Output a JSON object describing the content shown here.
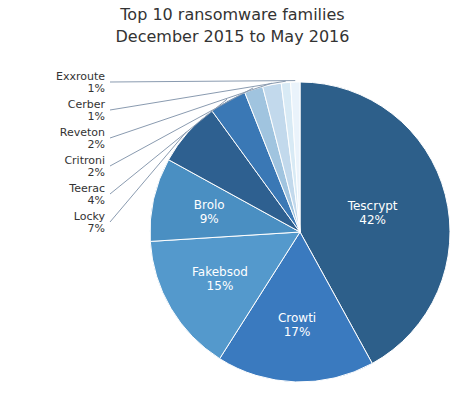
{
  "chart_data": {
    "type": "pie",
    "title": "Top 10 ransomware families",
    "subtitle": "December 2015 to May 2016",
    "categories": [
      "Tescrypt",
      "Crowti",
      "Fakebsod",
      "Brolo",
      "Locky",
      "Teerac",
      "Critroni",
      "Reveton",
      "Cerber",
      "Exxroute"
    ],
    "values": [
      42,
      17,
      15,
      9,
      7,
      4,
      2,
      2,
      1,
      1
    ],
    "value_labels": [
      "42%",
      "17%",
      "15%",
      "9%",
      "7%",
      "4%",
      "2%",
      "2%",
      "1%",
      "1%"
    ],
    "colors": [
      "#2d5f8a",
      "#3a7abf",
      "#5499cc",
      "#4a8fc2",
      "#2e6090",
      "#3a78b5",
      "#a0c4df",
      "#c2d9ec",
      "#d8eaf5",
      "#eaf3fb"
    ],
    "data_labels": true
  }
}
